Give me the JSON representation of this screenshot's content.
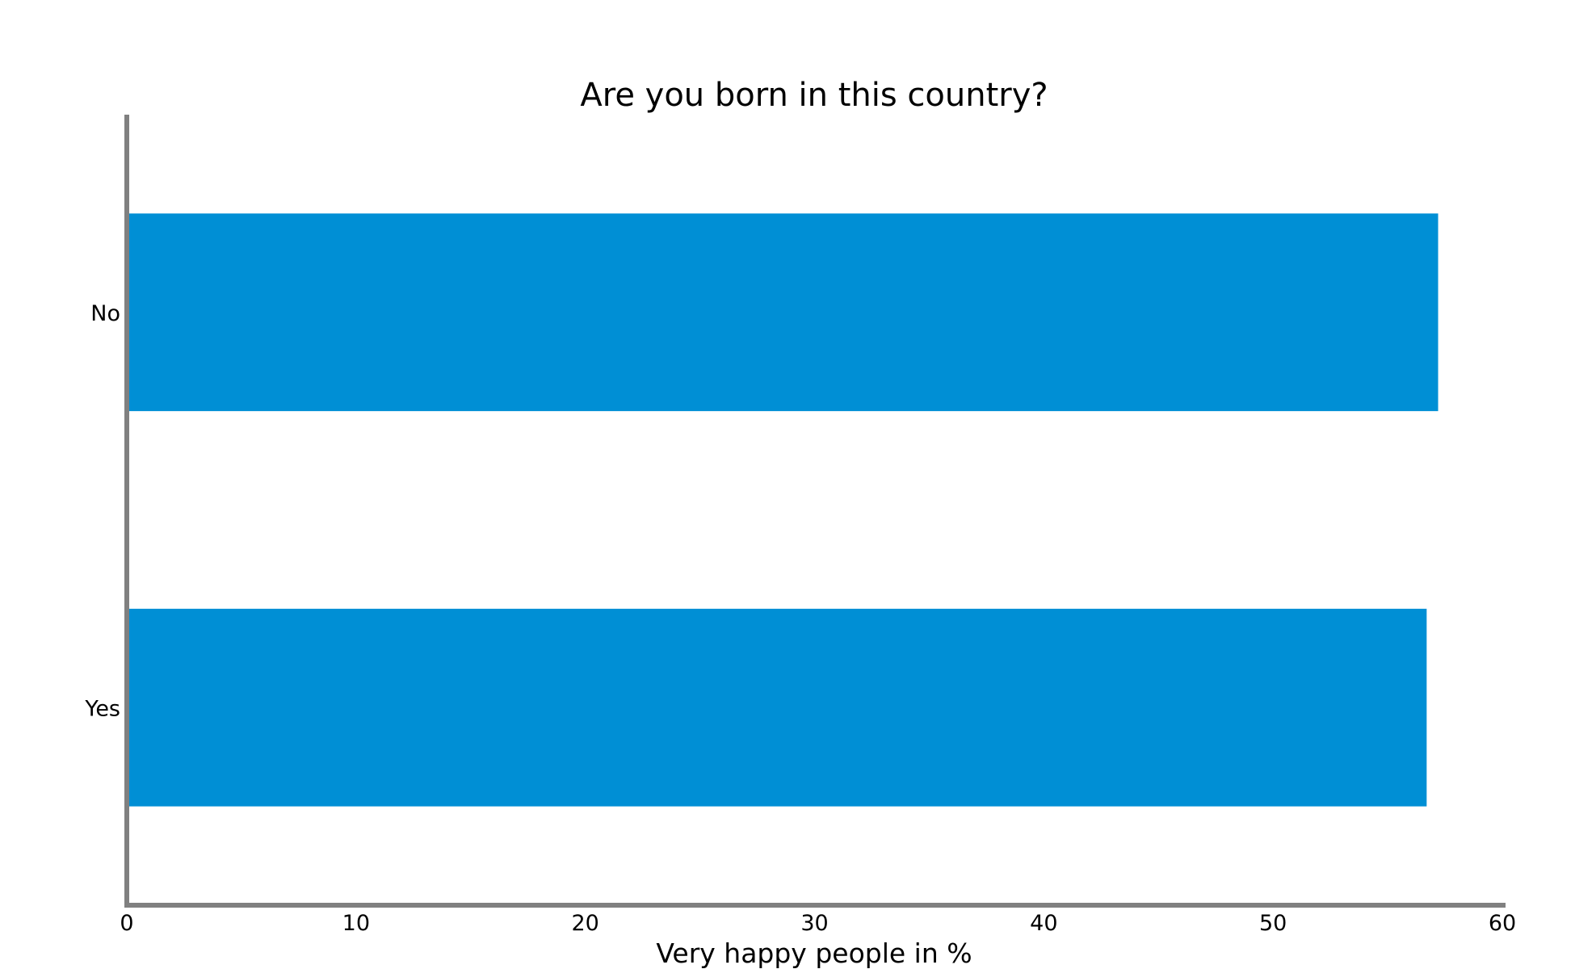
{
  "chart_data": {
    "type": "bar",
    "orientation": "horizontal",
    "title": "Are you born in this country?",
    "xlabel": "Very happy people in %",
    "ylabel": "",
    "categories": [
      "No",
      "Yes"
    ],
    "values": [
      57.2,
      56.7
    ],
    "xlim": [
      0,
      60
    ],
    "xticks": [
      "0",
      "10",
      "20",
      "30",
      "40",
      "50",
      "60"
    ],
    "grid": false,
    "legend": "none",
    "bar_color": "#008fd5",
    "axis_color": "#808080"
  }
}
